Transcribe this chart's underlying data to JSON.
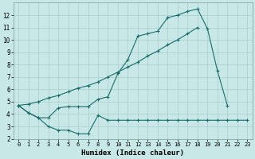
{
  "xlabel": "Humidex (Indice chaleur)",
  "bg_color": "#c8e8e8",
  "grid_color": "#aacccc",
  "line_color": "#1a6b6b",
  "xlim": [
    -0.5,
    23.5
  ],
  "ylim": [
    2,
    13
  ],
  "xticks": [
    0,
    1,
    2,
    3,
    4,
    5,
    6,
    7,
    8,
    9,
    10,
    11,
    12,
    13,
    14,
    15,
    16,
    17,
    18,
    19,
    20,
    21,
    22,
    23
  ],
  "yticks": [
    2,
    3,
    4,
    5,
    6,
    7,
    8,
    9,
    10,
    11,
    12
  ],
  "line1_x": [
    0,
    1,
    2,
    3,
    4,
    5,
    6,
    7,
    8,
    9,
    10,
    11,
    12,
    13,
    14,
    15,
    16,
    17,
    18,
    19,
    20,
    21
  ],
  "line1_y": [
    4.7,
    4.1,
    3.7,
    3.7,
    4.5,
    4.6,
    4.6,
    4.6,
    5.2,
    5.4,
    7.3,
    8.4,
    10.3,
    10.5,
    10.7,
    11.8,
    12.0,
    12.3,
    12.5,
    10.9,
    7.5,
    4.7
  ],
  "line2_x": [
    0,
    1,
    2,
    3,
    4,
    5,
    6,
    7,
    8,
    9,
    10,
    11,
    12,
    13,
    14,
    15,
    16,
    17,
    18
  ],
  "line2_y": [
    4.7,
    4.8,
    5.0,
    5.3,
    5.5,
    5.8,
    6.1,
    6.3,
    6.6,
    7.0,
    7.4,
    7.8,
    8.2,
    8.7,
    9.1,
    9.6,
    10.0,
    10.5,
    11.0
  ],
  "line3_x": [
    0,
    1,
    2,
    3,
    4,
    5,
    6,
    7,
    8,
    9,
    10,
    11,
    12,
    13,
    14,
    15,
    16,
    17,
    18,
    19,
    20,
    21,
    22,
    23
  ],
  "line3_y": [
    4.7,
    4.1,
    3.7,
    3.0,
    2.7,
    2.7,
    2.4,
    2.4,
    3.9,
    3.5,
    3.5,
    3.5,
    3.5,
    3.5,
    3.5,
    3.5,
    3.5,
    3.5,
    3.5,
    3.5,
    3.5,
    3.5,
    3.5,
    3.5
  ]
}
